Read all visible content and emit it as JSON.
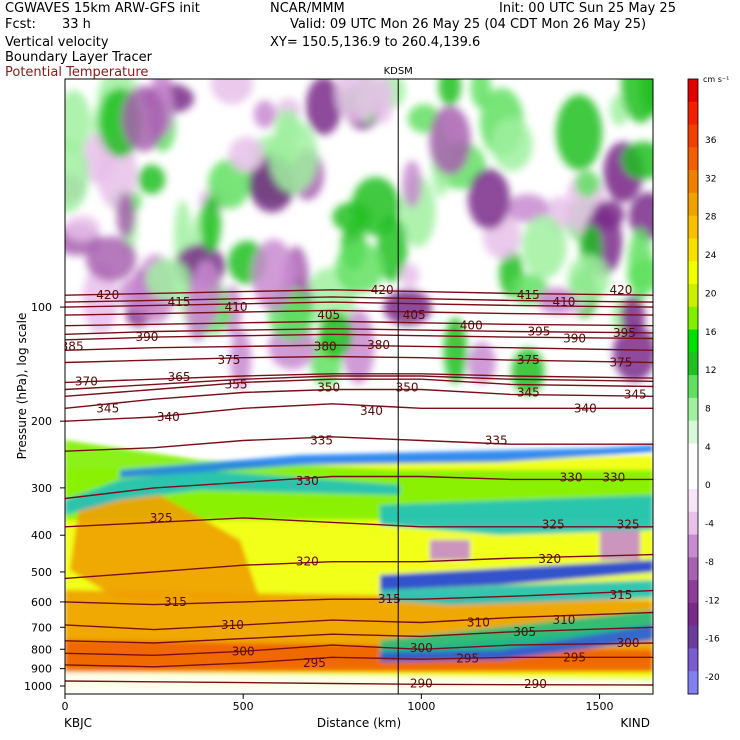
{
  "header": {
    "model": "CGWAVES 15km ARW-GFS init",
    "fcst_label": "Fcst:",
    "fcst_value": "33 h",
    "field1": "Vertical velocity",
    "field2": "Boundary Layer Tracer",
    "field3": "Potential Temperature",
    "field3_color": "#8b1a1a",
    "org": "NCAR/MMM",
    "init": "Init: 00 UTC Sun 25 May 25",
    "valid": "Valid: 09 UTC Mon 26 May 25 (04 CDT Mon 26 May 25)",
    "xy": "XY= 150.5,136.9 to 260.4,139.6"
  },
  "chart_data": {
    "type": "heatmap",
    "title": "",
    "xlabel": "Distance (km)",
    "ylabel": "Pressure (hPa), log scale",
    "y_scale": "log",
    "xlim": [
      0,
      1650
    ],
    "ylim": [
      1050,
      25
    ],
    "x_ticks": [
      0,
      500,
      1000,
      1500
    ],
    "y_ticks": [
      100,
      200,
      300,
      400,
      500,
      600,
      700,
      800,
      900,
      1000
    ],
    "station_left": "KBJC",
    "station_right": "KIND",
    "station_marker": {
      "label": "KDSM",
      "x": 935
    },
    "colorbar": {
      "unit": "cm s⁻¹",
      "tick_labels": [
        "-20",
        "-16",
        "-12",
        "-8",
        "-4",
        "0",
        "4",
        "8",
        "12",
        "16",
        "20",
        "24",
        "28",
        "32",
        "36"
      ],
      "colors": [
        "#8080f0",
        "#7a5cd0",
        "#6a3c9c",
        "#7a2a8a",
        "#8e3c9a",
        "#a860b0",
        "#c88ad0",
        "#e8c0ea",
        "#f7e4f7",
        "#ffffff",
        "#ffffff",
        "#d8f8d8",
        "#a0f0a0",
        "#60e060",
        "#20c020",
        "#00e000",
        "#80f000",
        "#c8f000",
        "#f0ff00",
        "#f8e000",
        "#f8c000",
        "#f0a000",
        "#f08000",
        "#f06000",
        "#f04000",
        "#f02000",
        "#e00000"
      ]
    },
    "theta_contours": [
      {
        "value": 290,
        "p": [
          970,
          975,
          980,
          985,
          990,
          992,
          994
        ]
      },
      {
        "value": 295,
        "p": [
          880,
          890,
          870,
          840,
          850,
          840,
          840
        ]
      },
      {
        "value": 300,
        "p": [
          820,
          830,
          810,
          780,
          800,
          780,
          770
        ]
      },
      {
        "value": 305,
        "p": [
          760,
          770,
          750,
          730,
          740,
          720,
          700
        ]
      },
      {
        "value": 310,
        "p": [
          690,
          710,
          690,
          670,
          680,
          660,
          640
        ]
      },
      {
        "value": 315,
        "p": [
          600,
          610,
          600,
          590,
          590,
          580,
          560
        ]
      },
      {
        "value": 320,
        "p": [
          520,
          500,
          480,
          470,
          470,
          460,
          450
        ]
      },
      {
        "value": 325,
        "p": [
          380,
          370,
          360,
          370,
          380,
          380,
          380
        ]
      },
      {
        "value": 330,
        "p": [
          320,
          300,
          290,
          280,
          280,
          285,
          285
        ]
      },
      {
        "value": 335,
        "p": [
          240,
          235,
          225,
          220,
          225,
          230,
          230
        ]
      },
      {
        "value": 340,
        "p": [
          200,
          195,
          185,
          180,
          185,
          185,
          185
        ]
      },
      {
        "value": 345,
        "p": [
          185,
          175,
          168,
          165,
          165,
          170,
          172
        ]
      },
      {
        "value": 350,
        "p": [
          172,
          165,
          158,
          155,
          155,
          160,
          162
        ]
      },
      {
        "value": 355,
        "p": [
          165,
          160,
          155,
          152,
          152,
          155,
          157
        ]
      },
      {
        "value": 365,
        "p": [
          158,
          155,
          152,
          150,
          150,
          152,
          154
        ]
      },
      {
        "value": 375,
        "p": [
          140,
          138,
          136,
          135,
          136,
          138,
          140
        ]
      },
      {
        "value": 380,
        "p": [
          130,
          128,
          127,
          126,
          127,
          128,
          130
        ]
      },
      {
        "value": 390,
        "p": [
          122,
          120,
          119,
          118,
          119,
          120,
          121
        ]
      },
      {
        "value": 395,
        "p": [
          118,
          116,
          115,
          114,
          115,
          116,
          117
        ]
      },
      {
        "value": 400,
        "p": [
          112,
          111,
          110,
          109,
          110,
          111,
          112
        ]
      },
      {
        "value": 405,
        "p": [
          105,
          104,
          103,
          102,
          103,
          104,
          105
        ]
      },
      {
        "value": 410,
        "p": [
          100,
          99,
          98,
          97,
          98,
          99,
          100
        ]
      },
      {
        "value": 415,
        "p": [
          97,
          96,
          95,
          94,
          95,
          96,
          97
        ]
      },
      {
        "value": 420,
        "p": [
          93,
          92,
          91,
          90,
          91,
          92,
          93
        ]
      }
    ],
    "contour_x": [
      0,
      250,
      500,
      750,
      1000,
      1250,
      1650
    ],
    "contour_labels": [
      {
        "t": "420",
        "x": 120,
        "p": 93
      },
      {
        "t": "415",
        "x": 320,
        "p": 97
      },
      {
        "t": "410",
        "x": 480,
        "p": 100
      },
      {
        "t": "405",
        "x": 740,
        "p": 105
      },
      {
        "t": "405",
        "x": 980,
        "p": 105
      },
      {
        "t": "420",
        "x": 890,
        "p": 90
      },
      {
        "t": "415",
        "x": 1300,
        "p": 93
      },
      {
        "t": "410",
        "x": 1400,
        "p": 97
      },
      {
        "t": "420",
        "x": 1560,
        "p": 90
      },
      {
        "t": "400",
        "x": 1140,
        "p": 112
      },
      {
        "t": "395",
        "x": 1330,
        "p": 116
      },
      {
        "t": "390",
        "x": 1430,
        "p": 121
      },
      {
        "t": "395",
        "x": 1570,
        "p": 117
      },
      {
        "t": "385",
        "x": 20,
        "p": 127
      },
      {
        "t": "390",
        "x": 230,
        "p": 120
      },
      {
        "t": "375",
        "x": 460,
        "p": 138
      },
      {
        "t": "380",
        "x": 730,
        "p": 127
      },
      {
        "t": "380",
        "x": 880,
        "p": 126
      },
      {
        "t": "375",
        "x": 1300,
        "p": 138
      },
      {
        "t": "375",
        "x": 1560,
        "p": 140
      },
      {
        "t": "370",
        "x": 60,
        "p": 157
      },
      {
        "t": "365",
        "x": 320,
        "p": 153
      },
      {
        "t": "355",
        "x": 480,
        "p": 160
      },
      {
        "t": "350",
        "x": 740,
        "p": 163
      },
      {
        "t": "350",
        "x": 960,
        "p": 163
      },
      {
        "t": "345",
        "x": 1300,
        "p": 168
      },
      {
        "t": "340",
        "x": 1460,
        "p": 185
      },
      {
        "t": "345",
        "x": 1600,
        "p": 170
      },
      {
        "t": "345",
        "x": 120,
        "p": 185
      },
      {
        "t": "340",
        "x": 290,
        "p": 195
      },
      {
        "t": "340",
        "x": 860,
        "p": 188
      },
      {
        "t": "335",
        "x": 720,
        "p": 225
      },
      {
        "t": "335",
        "x": 1210,
        "p": 225
      },
      {
        "t": "330",
        "x": 680,
        "p": 288
      },
      {
        "t": "330",
        "x": 1420,
        "p": 282
      },
      {
        "t": "330",
        "x": 1540,
        "p": 282
      },
      {
        "t": "325",
        "x": 270,
        "p": 360
      },
      {
        "t": "325",
        "x": 1370,
        "p": 375
      },
      {
        "t": "325",
        "x": 1580,
        "p": 375
      },
      {
        "t": "320",
        "x": 680,
        "p": 470
      },
      {
        "t": "320",
        "x": 1360,
        "p": 462
      },
      {
        "t": "315",
        "x": 310,
        "p": 600
      },
      {
        "t": "315",
        "x": 910,
        "p": 590
      },
      {
        "t": "315",
        "x": 1560,
        "p": 575
      },
      {
        "t": "310",
        "x": 470,
        "p": 690
      },
      {
        "t": "310",
        "x": 1160,
        "p": 680
      },
      {
        "t": "310",
        "x": 1400,
        "p": 670
      },
      {
        "t": "305",
        "x": 1290,
        "p": 720
      },
      {
        "t": "300",
        "x": 500,
        "p": 810
      },
      {
        "t": "300",
        "x": 1000,
        "p": 795
      },
      {
        "t": "300",
        "x": 1580,
        "p": 770
      },
      {
        "t": "295",
        "x": 700,
        "p": 870
      },
      {
        "t": "295",
        "x": 1130,
        "p": 845
      },
      {
        "t": "295",
        "x": 1430,
        "p": 840
      },
      {
        "t": "290",
        "x": 1000,
        "p": 985
      },
      {
        "t": "290",
        "x": 1320,
        "p": 988
      }
    ]
  }
}
